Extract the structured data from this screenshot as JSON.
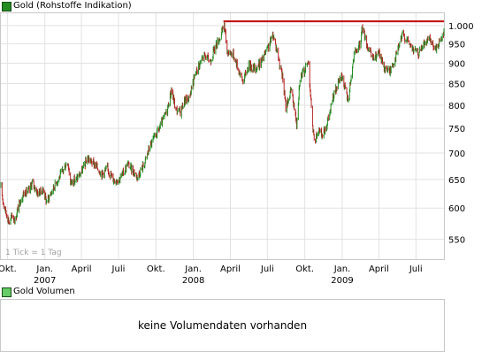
{
  "legend": {
    "price_label": "Gold (Rohstoffe Indikation)",
    "price_color": "#228b22",
    "volume_label": "Gold Volumen",
    "volume_color": "#66cc66"
  },
  "annotation": "1 Tick = 1 Tag",
  "volume_message": "keine Volumendaten vorhanden",
  "chart_data": {
    "type": "candlestick",
    "title": "Gold (Rohstoffe Indikation)",
    "ylim": [
      520,
      1035
    ],
    "y_scale": "log",
    "y_ticks": [
      {
        "value": 550,
        "label": "550"
      },
      {
        "value": 600,
        "label": "600"
      },
      {
        "value": 650,
        "label": "650"
      },
      {
        "value": 700,
        "label": "700"
      },
      {
        "value": 750,
        "label": "750"
      },
      {
        "value": 800,
        "label": "800"
      },
      {
        "value": 850,
        "label": "850"
      },
      {
        "value": 900,
        "label": "900"
      },
      {
        "value": 950,
        "label": "950"
      },
      {
        "value": 1000,
        "label": "1.000"
      }
    ],
    "x_range": [
      "2006-09-15",
      "2009-09-08"
    ],
    "x_ticks": [
      {
        "date": "2006-10-01",
        "label": "Okt.",
        "year": ""
      },
      {
        "date": "2007-01-01",
        "label": "Jan.",
        "year": "2007"
      },
      {
        "date": "2007-04-01",
        "label": "April",
        "year": ""
      },
      {
        "date": "2007-07-01",
        "label": "Juli",
        "year": ""
      },
      {
        "date": "2007-10-01",
        "label": "Okt.",
        "year": ""
      },
      {
        "date": "2008-01-01",
        "label": "Jan.",
        "year": "2008"
      },
      {
        "date": "2008-04-01",
        "label": "April",
        "year": ""
      },
      {
        "date": "2008-07-01",
        "label": "Juli",
        "year": ""
      },
      {
        "date": "2008-10-01",
        "label": "Okt.",
        "year": ""
      },
      {
        "date": "2009-01-01",
        "label": "Jan.",
        "year": "2009"
      },
      {
        "date": "2009-04-01",
        "label": "April",
        "year": ""
      },
      {
        "date": "2009-07-01",
        "label": "Juli",
        "year": ""
      }
    ],
    "up_color": "#228b22",
    "down_color": "#b22222",
    "resistance_line": {
      "value": 1012,
      "from": "2008-03-15",
      "to": "2009-09-08",
      "color": "#c00000"
    },
    "price_path": [
      [
        "2006-09-15",
        635
      ],
      [
        "2006-09-22",
        605
      ],
      [
        "2006-09-29",
        590
      ],
      [
        "2006-10-06",
        575
      ],
      [
        "2006-10-13",
        588
      ],
      [
        "2006-10-20",
        580
      ],
      [
        "2006-10-27",
        600
      ],
      [
        "2006-11-03",
        615
      ],
      [
        "2006-11-10",
        625
      ],
      [
        "2006-11-24",
        630
      ],
      [
        "2006-12-01",
        645
      ],
      [
        "2006-12-15",
        625
      ],
      [
        "2006-12-29",
        632
      ],
      [
        "2007-01-05",
        610
      ],
      [
        "2007-01-19",
        630
      ],
      [
        "2007-02-02",
        650
      ],
      [
        "2007-02-16",
        668
      ],
      [
        "2007-02-26",
        685
      ],
      [
        "2007-03-05",
        645
      ],
      [
        "2007-03-19",
        650
      ],
      [
        "2007-04-02",
        665
      ],
      [
        "2007-04-16",
        690
      ],
      [
        "2007-04-23",
        685
      ],
      [
        "2007-05-07",
        675
      ],
      [
        "2007-05-21",
        660
      ],
      [
        "2007-06-04",
        670
      ],
      [
        "2007-06-18",
        650
      ],
      [
        "2007-07-02",
        650
      ],
      [
        "2007-07-16",
        665
      ],
      [
        "2007-07-23",
        680
      ],
      [
        "2007-08-06",
        665
      ],
      [
        "2007-08-17",
        655
      ],
      [
        "2007-09-03",
        680
      ],
      [
        "2007-09-17",
        715
      ],
      [
        "2007-10-01",
        735
      ],
      [
        "2007-10-15",
        760
      ],
      [
        "2007-10-29",
        790
      ],
      [
        "2007-11-08",
        835
      ],
      [
        "2007-11-19",
        790
      ],
      [
        "2007-11-30",
        785
      ],
      [
        "2007-12-10",
        810
      ],
      [
        "2007-12-21",
        815
      ],
      [
        "2008-01-02",
        860
      ],
      [
        "2008-01-14",
        895
      ],
      [
        "2008-01-28",
        920
      ],
      [
        "2008-02-11",
        905
      ],
      [
        "2008-02-25",
        945
      ],
      [
        "2008-03-10",
        975
      ],
      [
        "2008-03-17",
        1005
      ],
      [
        "2008-03-24",
        930
      ],
      [
        "2008-04-07",
        925
      ],
      [
        "2008-04-21",
        885
      ],
      [
        "2008-05-02",
        855
      ],
      [
        "2008-05-16",
        895
      ],
      [
        "2008-06-02",
        885
      ],
      [
        "2008-06-16",
        905
      ],
      [
        "2008-07-01",
        935
      ],
      [
        "2008-07-15",
        975
      ],
      [
        "2008-07-25",
        930
      ],
      [
        "2008-08-08",
        860
      ],
      [
        "2008-08-15",
        795
      ],
      [
        "2008-08-29",
        835
      ],
      [
        "2008-09-11",
        760
      ],
      [
        "2008-09-19",
        865
      ],
      [
        "2008-09-30",
        880
      ],
      [
        "2008-10-10",
        905
      ],
      [
        "2008-10-17",
        790
      ],
      [
        "2008-10-24",
        720
      ],
      [
        "2008-11-03",
        745
      ],
      [
        "2008-11-14",
        735
      ],
      [
        "2008-11-28",
        770
      ],
      [
        "2008-12-10",
        820
      ],
      [
        "2008-12-31",
        870
      ],
      [
        "2009-01-15",
        810
      ],
      [
        "2009-01-30",
        920
      ],
      [
        "2009-02-13",
        945
      ],
      [
        "2009-02-20",
        995
      ],
      [
        "2009-03-06",
        935
      ],
      [
        "2009-03-18",
        910
      ],
      [
        "2009-04-01",
        925
      ],
      [
        "2009-04-14",
        890
      ],
      [
        "2009-04-28",
        880
      ],
      [
        "2009-05-12",
        915
      ],
      [
        "2009-05-29",
        975
      ],
      [
        "2009-06-10",
        960
      ],
      [
        "2009-06-24",
        935
      ],
      [
        "2009-07-08",
        925
      ],
      [
        "2009-07-21",
        950
      ],
      [
        "2009-08-04",
        960
      ],
      [
        "2009-08-18",
        935
      ],
      [
        "2009-08-28",
        955
      ],
      [
        "2009-09-08",
        985
      ]
    ]
  }
}
